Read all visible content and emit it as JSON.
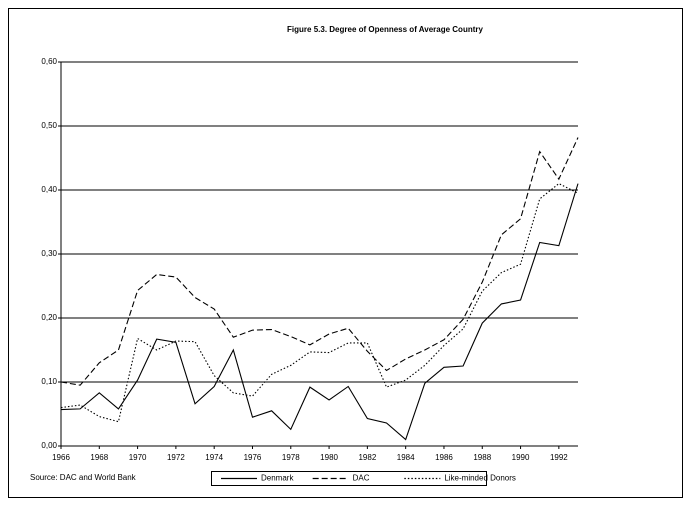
{
  "chart_data": {
    "type": "line",
    "title": "Figure 5.3. Degree of Openness of Average Country",
    "source": "Source: DAC and World Bank",
    "x": [
      1966,
      1967,
      1968,
      1969,
      1970,
      1971,
      1972,
      1973,
      1974,
      1975,
      1976,
      1977,
      1978,
      1979,
      1980,
      1981,
      1982,
      1983,
      1984,
      1985,
      1986,
      1987,
      1988,
      1989,
      1990,
      1991,
      1992,
      1993
    ],
    "series": [
      {
        "name": "Denmark",
        "color": "#000000",
        "dash": "solid",
        "values": [
          0.057,
          0.058,
          0.083,
          0.058,
          0.103,
          0.167,
          0.162,
          0.066,
          0.093,
          0.15,
          0.045,
          0.055,
          0.026,
          0.092,
          0.072,
          0.093,
          0.043,
          0.036,
          0.01,
          0.098,
          0.123,
          0.125,
          0.192,
          0.222,
          0.228,
          0.318,
          0.313,
          0.41
        ]
      },
      {
        "name": "DAC",
        "color": "#000000",
        "dash": "dashed",
        "values": [
          0.1,
          0.095,
          0.13,
          0.15,
          0.243,
          0.268,
          0.264,
          0.232,
          0.214,
          0.17,
          0.181,
          0.182,
          0.171,
          0.158,
          0.175,
          0.184,
          0.148,
          0.118,
          0.136,
          0.15,
          0.166,
          0.198,
          0.256,
          0.33,
          0.355,
          0.46,
          0.417,
          0.482
        ]
      },
      {
        "name": "Like-minded Donors",
        "color": "#000000",
        "dash": "dotted",
        "values": [
          0.06,
          0.064,
          0.046,
          0.038,
          0.168,
          0.15,
          0.164,
          0.163,
          0.11,
          0.083,
          0.078,
          0.112,
          0.126,
          0.147,
          0.146,
          0.161,
          0.161,
          0.092,
          0.103,
          0.126,
          0.157,
          0.183,
          0.242,
          0.271,
          0.284,
          0.386,
          0.41,
          0.395
        ]
      }
    ],
    "xlim": [
      1966,
      1993
    ],
    "xticks": [
      1966,
      1968,
      1970,
      1972,
      1974,
      1976,
      1978,
      1980,
      1982,
      1984,
      1986,
      1988,
      1990,
      1992
    ],
    "ylim": [
      0,
      0.6
    ],
    "yticks": [
      {
        "value": 0,
        "label": "0,00"
      },
      {
        "value": 0.1,
        "label": "0,10"
      },
      {
        "value": 0.2,
        "label": "0,20"
      },
      {
        "value": 0.3,
        "label": "0,30"
      },
      {
        "value": 0.4,
        "label": "0,40"
      },
      {
        "value": 0.5,
        "label": "0,50"
      },
      {
        "value": 0.6,
        "label": "0,60"
      }
    ],
    "grid": true,
    "legend": "bottom"
  }
}
